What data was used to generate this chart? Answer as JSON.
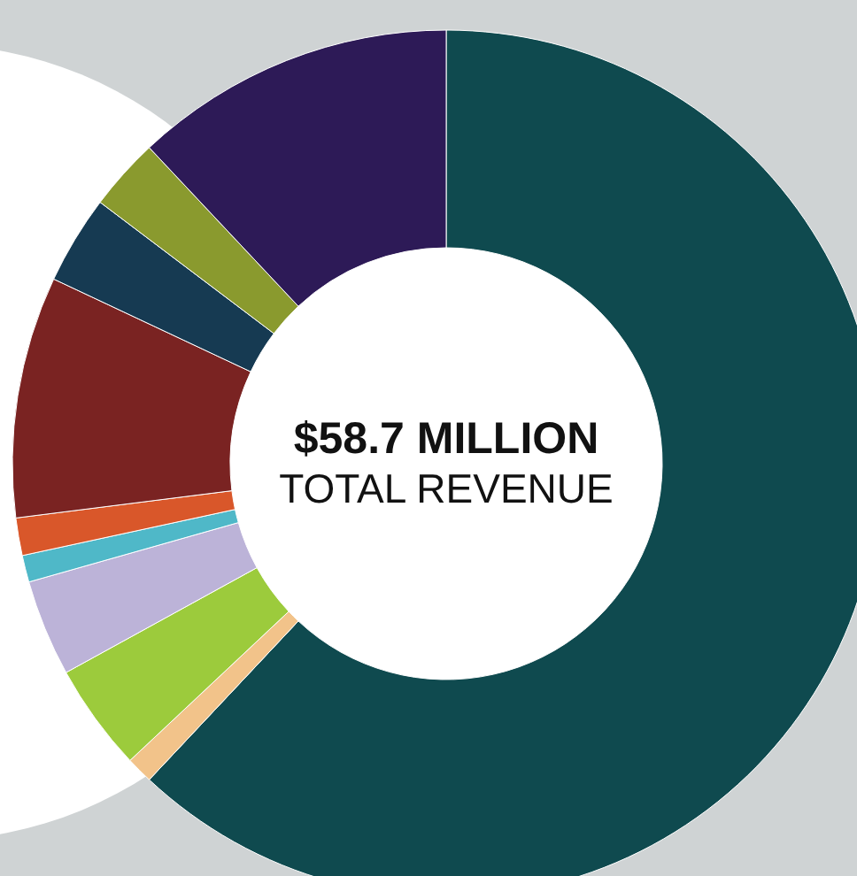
{
  "chart_data": {
    "type": "donut",
    "title": "$58.7 MILLION",
    "subtitle": "TOTAL REVENUE",
    "categories": [
      null,
      null,
      null,
      null,
      null,
      null,
      null,
      null,
      null,
      null
    ],
    "values": [
      62,
      1,
      4,
      3.6,
      1,
      1.4,
      9,
      3.3,
      2.7,
      12
    ],
    "colors": [
      "#0f4a4f",
      "#f2c38a",
      "#9ccb3c",
      "#bcb3d8",
      "#4fb8c8",
      "#d9572a",
      "#7a2322",
      "#163a52",
      "#8a9a2e",
      "#2d1a57"
    ]
  }
}
